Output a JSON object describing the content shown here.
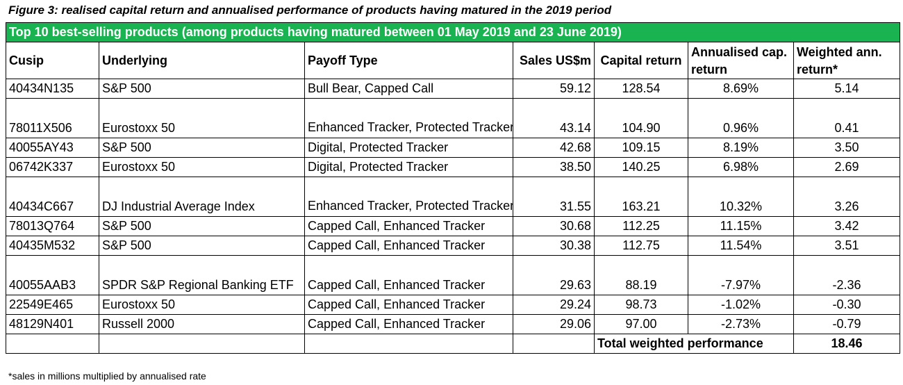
{
  "caption": "Figure 3: realised capital return and annualised performance of products having matured in the 2019 period",
  "banner": "Top 10 best-selling products (among products having matured between 01 May 2019 and 23 June 2019)",
  "headers": {
    "cusip": "Cusip",
    "underlying": "Underlying",
    "payoff": "Payoff Type",
    "sales": "Sales US$m",
    "capital": "Capital return",
    "annualised": "Annualised cap. return",
    "weighted": "Weighted ann. return*"
  },
  "rows": [
    {
      "cusip": "40434N135",
      "underlying": "S&P 500",
      "payoff": "Bull Bear, Capped Call",
      "sales": "59.12",
      "capital": "128.54",
      "annualised": "8.69%",
      "weighted": "5.14"
    },
    {
      "cusip": "78011X506",
      "underlying": "Eurostoxx 50",
      "payoff": "Enhanced Tracker, Protected Tracker",
      "sales": "43.14",
      "capital": "104.90",
      "annualised": "0.96%",
      "weighted": "0.41"
    },
    {
      "cusip": "40055AY43",
      "underlying": "S&P 500",
      "payoff": "Digital, Protected Tracker",
      "sales": "42.68",
      "capital": "109.15",
      "annualised": "8.19%",
      "weighted": "3.50"
    },
    {
      "cusip": "06742K337",
      "underlying": "Eurostoxx 50",
      "payoff": "Digital, Protected Tracker",
      "sales": "38.50",
      "capital": "140.25",
      "annualised": "6.98%",
      "weighted": "2.69"
    },
    {
      "cusip": "40434C667",
      "underlying": "DJ Industrial Average Index",
      "payoff": "Enhanced Tracker, Protected Tracker",
      "sales": "31.55",
      "capital": "163.21",
      "annualised": "10.32%",
      "weighted": "3.26"
    },
    {
      "cusip": "78013Q764",
      "underlying": "S&P 500",
      "payoff": "Capped Call, Enhanced Tracker",
      "sales": "30.68",
      "capital": "112.25",
      "annualised": "11.15%",
      "weighted": "3.42"
    },
    {
      "cusip": "40435M532",
      "underlying": "S&P 500",
      "payoff": "Capped Call, Enhanced Tracker",
      "sales": "30.38",
      "capital": "112.75",
      "annualised": "11.54%",
      "weighted": "3.51"
    },
    {
      "cusip": "40055AAB3",
      "underlying": "SPDR S&P Regional Banking ETF",
      "payoff": "Capped Call, Enhanced Tracker",
      "sales": "29.63",
      "capital": "88.19",
      "annualised": "-7.97%",
      "weighted": "-2.36"
    },
    {
      "cusip": "22549E465",
      "underlying": "Eurostoxx 50",
      "payoff": "Capped Call, Enhanced Tracker",
      "sales": "29.24",
      "capital": "98.73",
      "annualised": "-1.02%",
      "weighted": "-0.30"
    },
    {
      "cusip": "48129N401",
      "underlying": "Russell 2000",
      "payoff": "Capped Call, Enhanced Tracker",
      "sales": "29.06",
      "capital": "97.00",
      "annualised": "-2.73%",
      "weighted": "-0.79"
    }
  ],
  "total": {
    "label": "Total weighted performance",
    "value": "18.46"
  },
  "footnote": "*sales in millions multiplied by annualised rate",
  "colors": {
    "banner": "#19b451"
  }
}
